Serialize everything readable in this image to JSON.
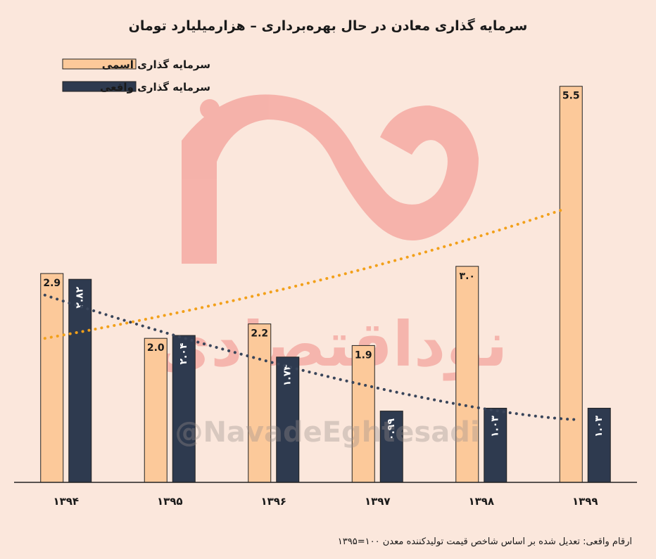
{
  "watermark": {
    "logo_text": "نوداقتصادی",
    "handle": "@NavadeEghtesadi",
    "color": "#f4a9a2"
  },
  "colors": {
    "background": "#fbe7dc",
    "nominal": "#fcc99a",
    "real": "#2e3a4f",
    "nominal_trend": "#f2a01a",
    "real_trend": "#39455a"
  },
  "chart_data": {
    "type": "bar",
    "title": "سرمایه گذاری معادن در حال بهره‌برداری – هزارمیلیارد تومان",
    "categories": [
      "۱۳۹۴",
      "۱۳۹۵",
      "۱۳۹۶",
      "۱۳۹۷",
      "۱۳۹۸",
      "۱۳۹۹"
    ],
    "ylim": [
      0,
      5.8
    ],
    "legend_position": "top-left",
    "series": [
      {
        "name": "سرمایه گذاری اسمی",
        "values": [
          2.9,
          2.0,
          2.2,
          1.9,
          3.0,
          5.5
        ],
        "labels": [
          "2.9",
          "2.0",
          "2.2",
          "1.9",
          "۳.۰",
          "5.5"
        ]
      },
      {
        "name": "سرمایه گذاری واقعی",
        "values": [
          2.82,
          2.04,
          1.74,
          0.99,
          1.03,
          1.03
        ],
        "labels": [
          "۲.۸۲",
          "۲.۰۴",
          "۱.۷۴",
          "۰.۹۹",
          "۱.۰۳",
          "۱.۰۳"
        ]
      }
    ],
    "trendlines": [
      {
        "series": "سرمایه گذاری اسمی",
        "style": "dotted",
        "start": 2.0,
        "end": 3.8
      },
      {
        "series": "سرمایه گذاری واقعی",
        "style": "dotted",
        "start": 2.6,
        "end": 0.87
      }
    ],
    "note": "ارقام واقعی: تعدیل شده بر اساس شاخص قیمت تولیدکننده معدن ۱۰۰=۱۳۹۵"
  }
}
